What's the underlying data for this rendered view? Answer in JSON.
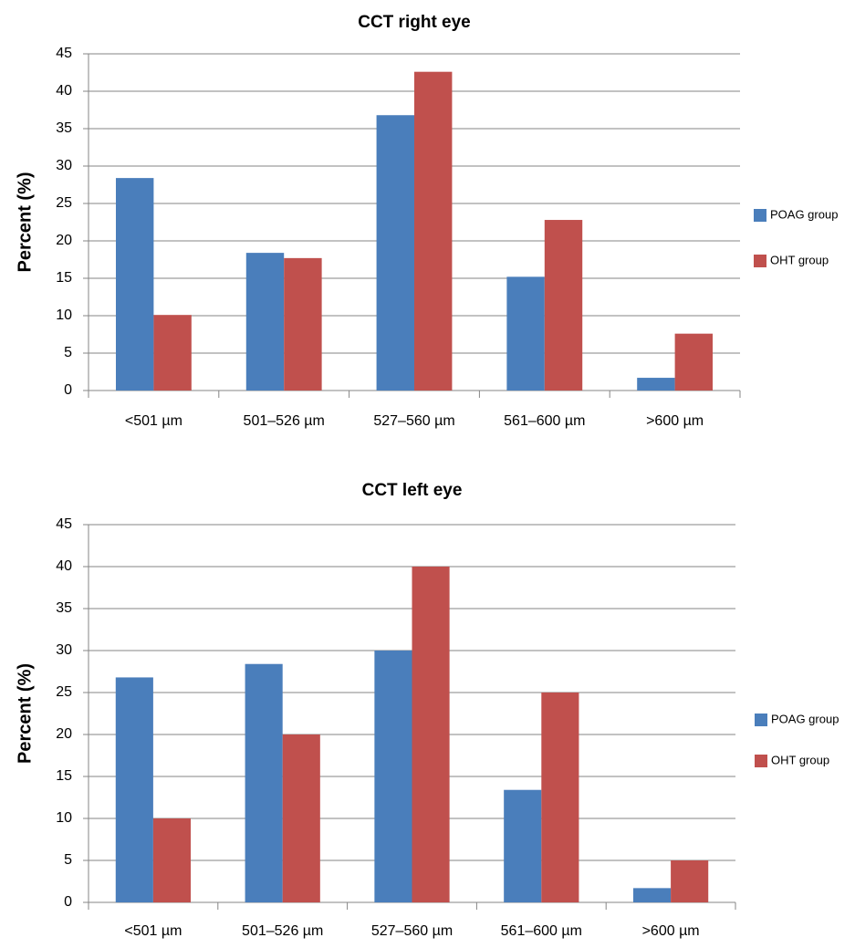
{
  "colors": {
    "poag": "#4a7ebb",
    "oht": "#c0504d"
  },
  "chart_data": [
    {
      "type": "bar",
      "title": "CCT right eye",
      "xlabel": "",
      "ylabel": "Percent (%)",
      "ylim": [
        0,
        45
      ],
      "yticks": [
        "0",
        "5",
        "10",
        "15",
        "20",
        "25",
        "30",
        "35",
        "40",
        "45"
      ],
      "categories": [
        "<501 µm",
        "501–526 µm",
        "527–560 µm",
        "561–600 µm",
        ">600 µm"
      ],
      "series": [
        {
          "name": "POAG group",
          "values": [
            28.4,
            18.4,
            36.8,
            15.2,
            1.7
          ]
        },
        {
          "name": "OHT group",
          "values": [
            10.1,
            17.7,
            42.6,
            22.8,
            7.6
          ]
        }
      ],
      "grid": true,
      "legend": "right"
    },
    {
      "type": "bar",
      "title": "CCT left eye",
      "xlabel": "",
      "ylabel": "Percent (%)",
      "ylim": [
        0,
        45
      ],
      "yticks": [
        "0",
        "5",
        "10",
        "15",
        "20",
        "25",
        "30",
        "35",
        "40",
        "45"
      ],
      "categories": [
        "<501 µm",
        "501–526 µm",
        "527–560 µm",
        "561–600 µm",
        ">600 µm"
      ],
      "series": [
        {
          "name": "POAG group",
          "values": [
            26.8,
            28.4,
            30.0,
            13.4,
            1.7
          ]
        },
        {
          "name": "OHT group",
          "values": [
            10.0,
            20.0,
            40.0,
            25.0,
            5.0
          ]
        }
      ],
      "grid": true,
      "legend": "right"
    }
  ]
}
